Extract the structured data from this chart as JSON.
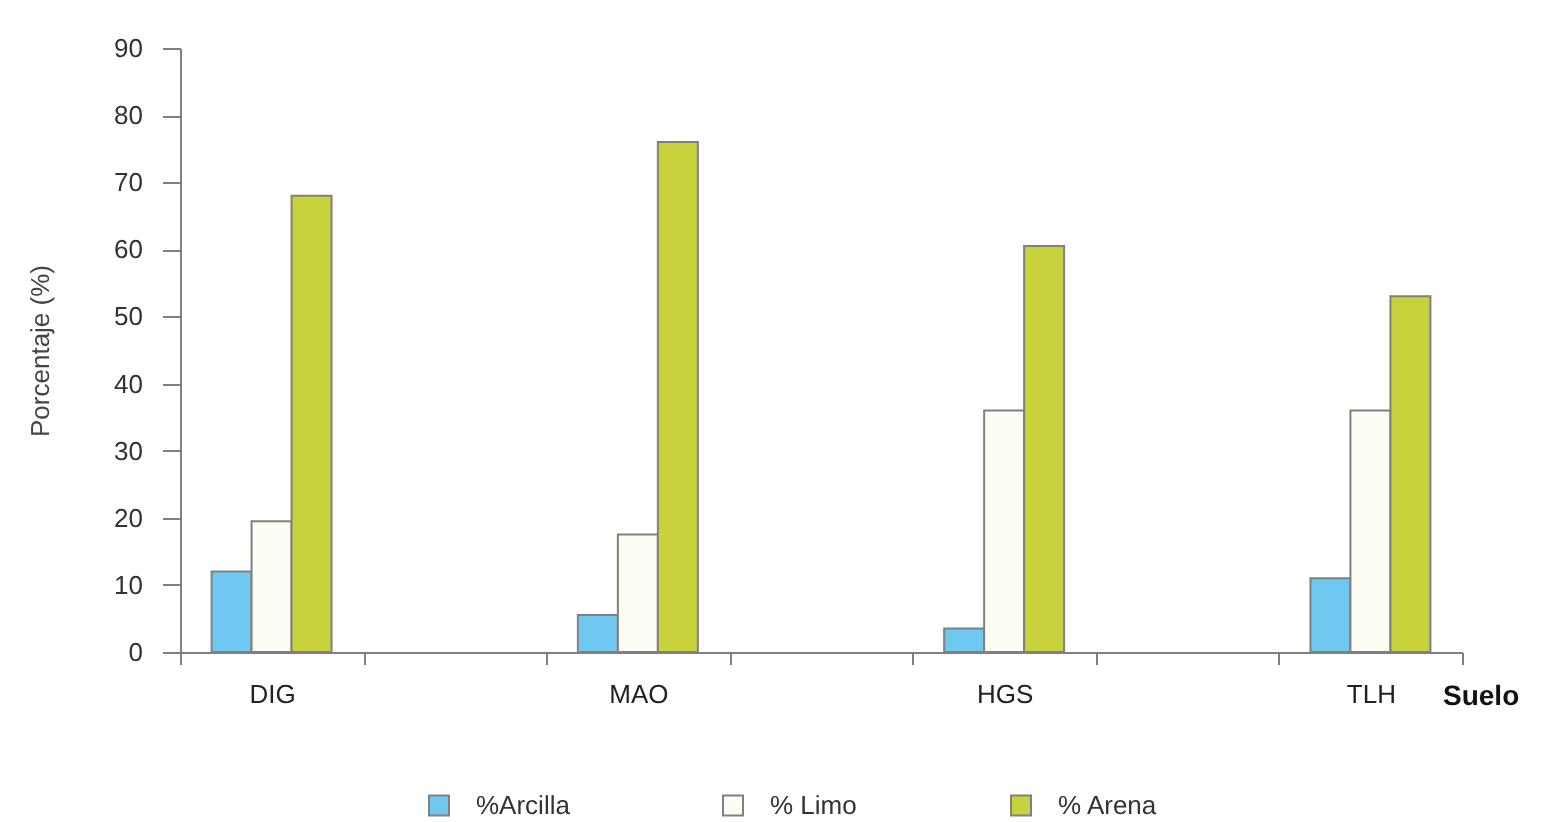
{
  "chart_data": {
    "type": "bar",
    "xlabel": "Suelo",
    "ylabel": "Porcentaje (%)",
    "categories": [
      "DIG",
      null,
      "MAO",
      null,
      "HGS",
      null,
      "TLH"
    ],
    "series": [
      {
        "name": "%Arcilla",
        "color": "#6ec8f0",
        "values": [
          12,
          null,
          5.5,
          null,
          3.5,
          null,
          11
        ]
      },
      {
        "name": "% Limo",
        "color": "#fdfdf3",
        "values": [
          19.5,
          null,
          17.5,
          null,
          36,
          null,
          36
        ]
      },
      {
        "name": "% Arena",
        "color": "#c8d23c",
        "values": [
          68,
          null,
          76,
          null,
          60.5,
          null,
          53
        ]
      }
    ],
    "ylim": [
      0,
      90
    ],
    "yticks": [
      0,
      10,
      20,
      30,
      40,
      50,
      60,
      70,
      80,
      90
    ],
    "grid": false,
    "legend": "bottom"
  }
}
